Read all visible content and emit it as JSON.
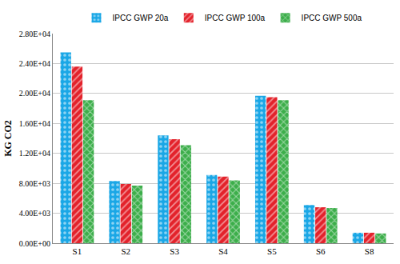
{
  "chart_data": {
    "type": "bar",
    "y_label": "KG CO2",
    "categories": [
      "S1",
      "S2",
      "S3",
      "S4",
      "S5",
      "S6",
      "S8"
    ],
    "series": [
      {
        "name": "IPCC GWP 20a",
        "color": "#1aa7e6",
        "marker": "dots",
        "values": [
          25500,
          8300,
          14400,
          9100,
          19700,
          5100,
          1400
        ]
      },
      {
        "name": "IPCC GWP 100a",
        "color": "#e3222b",
        "marker": "stripes",
        "values": [
          23600,
          7900,
          13900,
          8900,
          19500,
          4800,
          1400
        ]
      },
      {
        "name": "IPCC GWP 500a",
        "color": "#3cae4a",
        "marker": "crosshatch",
        "values": [
          19100,
          7700,
          13100,
          8400,
          19100,
          4700,
          1300
        ]
      }
    ],
    "ylim": [
      0,
      28000
    ],
    "yticks": [
      {
        "value": 0,
        "label": "0.00E+00"
      },
      {
        "value": 4000,
        "label": "4.00E+03"
      },
      {
        "value": 8000,
        "label": "8.00E+03"
      },
      {
        "value": 12000,
        "label": "1.20E+04"
      },
      {
        "value": 16000,
        "label": "1.60E+04"
      },
      {
        "value": 20000,
        "label": "2.00E+04"
      },
      {
        "value": 24000,
        "label": "2.40E+04"
      },
      {
        "value": 28000,
        "label": "2.80E+04"
      }
    ],
    "grid": true,
    "legend": "top"
  }
}
